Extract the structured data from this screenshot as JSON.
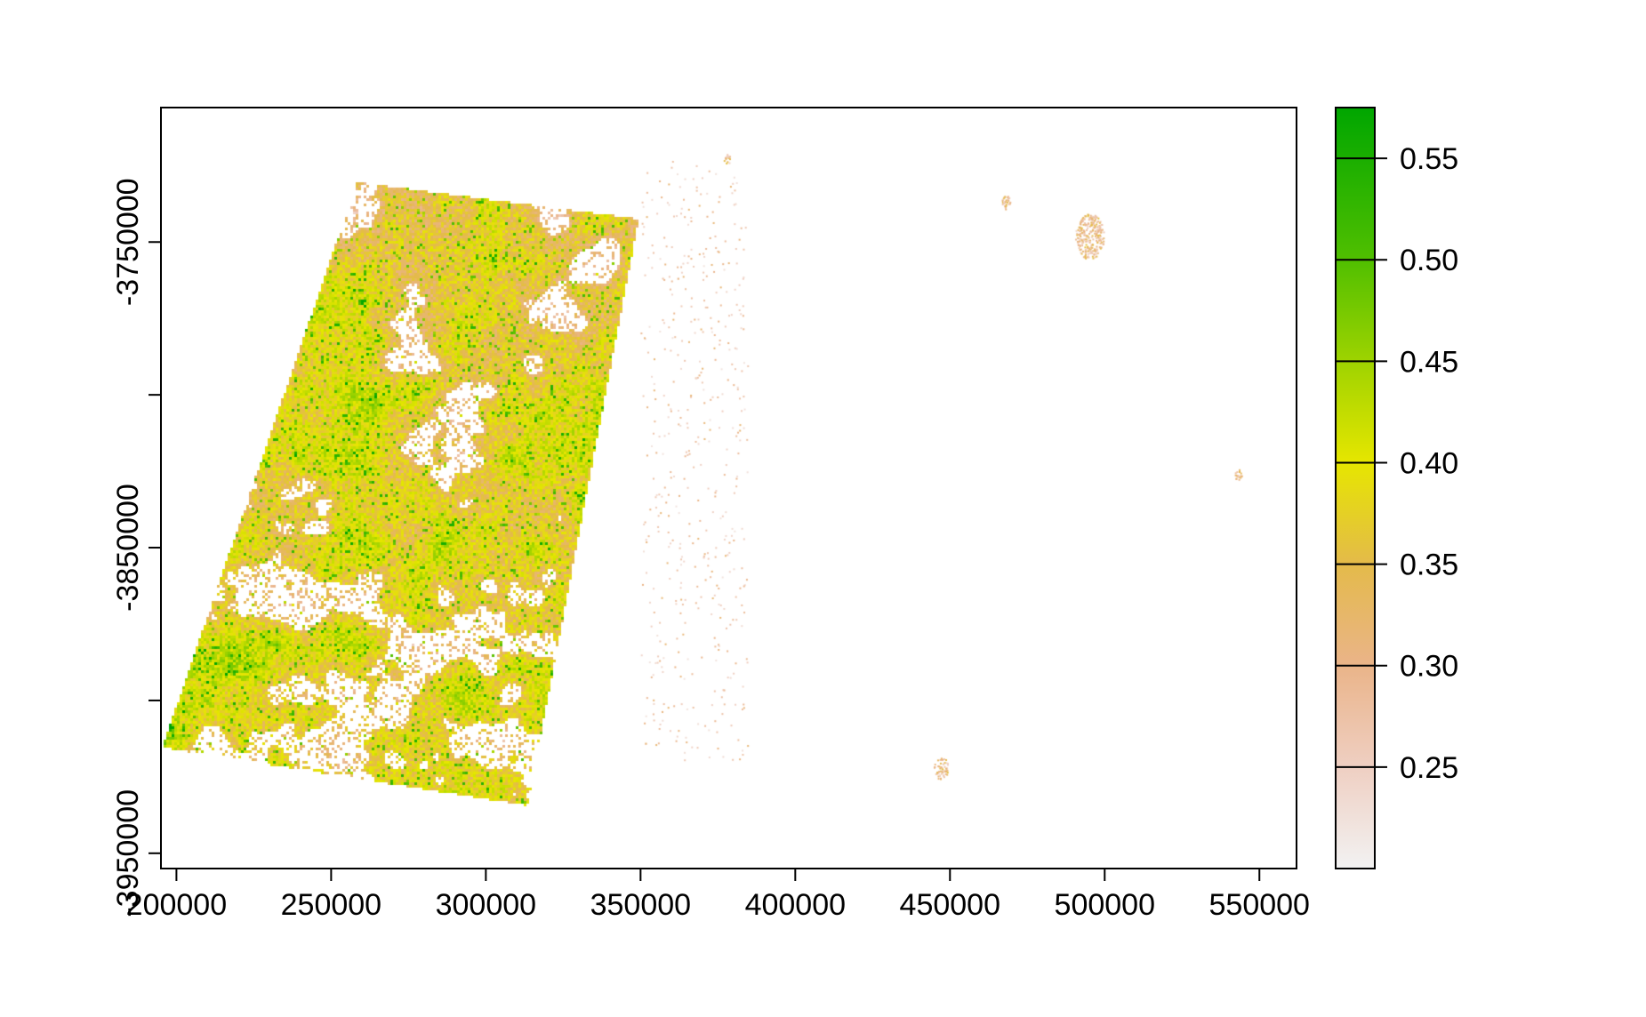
{
  "chart_data": {
    "type": "heatmap",
    "title": "",
    "xlabel": "",
    "ylabel": "",
    "x_axis": {
      "range": [
        195000,
        562000
      ],
      "ticks": [
        200000,
        250000,
        300000,
        350000,
        400000,
        450000,
        500000,
        550000
      ],
      "tick_labels": [
        "200000",
        "250000",
        "300000",
        "350000",
        "400000",
        "450000",
        "500000",
        "550000"
      ]
    },
    "y_axis": {
      "range": [
        -3955000,
        -3706000
      ],
      "ticks": [
        -3950000,
        -3900000,
        -3850000,
        -3800000,
        -3750000
      ],
      "tick_labels": [
        "-3950000",
        "",
        "-3850000",
        "",
        "-3750000"
      ]
    },
    "grid": false,
    "legend": {
      "type": "colorbar",
      "placement": "right",
      "range": [
        0.2,
        0.575
      ],
      "ticks": [
        0.25,
        0.3,
        0.35,
        0.4,
        0.45,
        0.5,
        0.55
      ],
      "tick_labels": [
        "0.25",
        "0.30",
        "0.35",
        "0.40",
        "0.45",
        "0.50",
        "0.55"
      ],
      "color_stops": [
        {
          "value": 0.2,
          "color": "#F2F2F2"
        },
        {
          "value": 0.25,
          "color": "#EFCFC2"
        },
        {
          "value": 0.3,
          "color": "#EAB489"
        },
        {
          "value": 0.35,
          "color": "#E4BA4A"
        },
        {
          "value": 0.4,
          "color": "#E6E600"
        },
        {
          "value": 0.45,
          "color": "#9ED300"
        },
        {
          "value": 0.5,
          "color": "#50BF00"
        },
        {
          "value": 0.575,
          "color": "#00A600"
        }
      ]
    },
    "raster_footprint": {
      "corners_xy": [
        [
          195000,
          -3915000
        ],
        [
          258000,
          -3730000
        ],
        [
          349000,
          -3742000
        ],
        [
          313000,
          -3934000
        ]
      ],
      "typical_value_range": [
        0.2,
        0.58
      ]
    }
  }
}
